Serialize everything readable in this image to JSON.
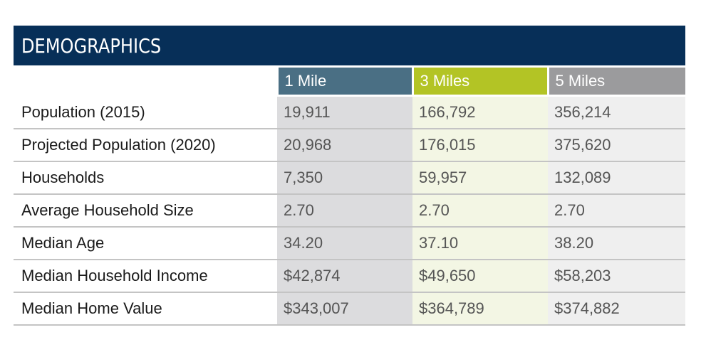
{
  "header": {
    "title": "DEMOGRAPHICS"
  },
  "colors": {
    "header_bg": "#072f58",
    "col1": "#4a6f84",
    "col2": "#b3c425",
    "col3": "#9b9b9d"
  },
  "columns": [
    "1 Mile",
    "3 Miles",
    "5 Miles"
  ],
  "rows": [
    {
      "label": "Population (2015)",
      "values": [
        "19,911",
        "166,792",
        "356,214"
      ]
    },
    {
      "label": "Projected Population (2020)",
      "values": [
        "20,968",
        "176,015",
        "375,620"
      ]
    },
    {
      "label": "Households",
      "values": [
        "7,350",
        "59,957",
        "132,089"
      ]
    },
    {
      "label": "Average Household Size",
      "values": [
        "2.70",
        "2.70",
        "2.70"
      ]
    },
    {
      "label": "Median Age",
      "values": [
        "34.20",
        "37.10",
        "38.20"
      ]
    },
    {
      "label": "Median Household Income",
      "values": [
        "$42,874",
        "$49,650",
        "$58,203"
      ]
    },
    {
      "label": "Median Home Value",
      "values": [
        "$343,007",
        "$364,789",
        "$374,882"
      ]
    }
  ]
}
